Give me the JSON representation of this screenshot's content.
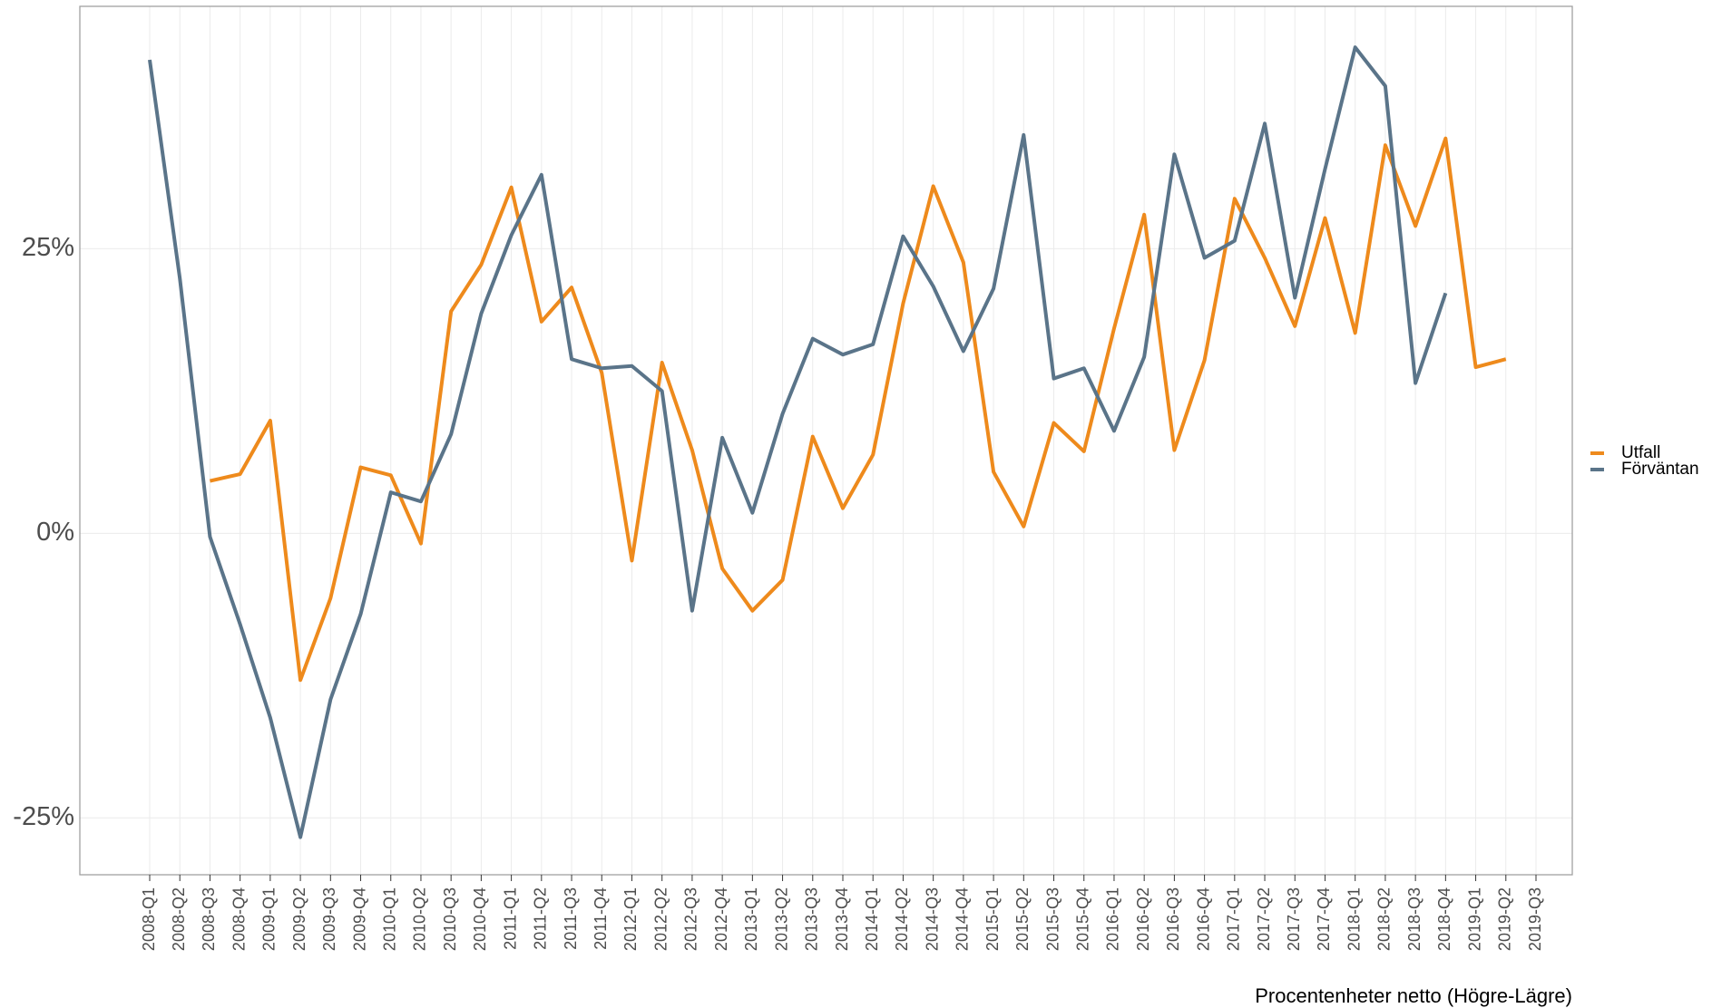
{
  "chart_data": {
    "type": "line",
    "x_label": "Procentenheter netto (Högre-Lägre)",
    "categories": [
      "2008-Q1",
      "2008-Q2",
      "2008-Q3",
      "2008-Q4",
      "2009-Q1",
      "2009-Q2",
      "2009-Q3",
      "2009-Q4",
      "2010-Q1",
      "2010-Q2",
      "2010-Q3",
      "2010-Q4",
      "2011-Q1",
      "2011-Q2",
      "2011-Q3",
      "2011-Q4",
      "2012-Q1",
      "2012-Q2",
      "2012-Q3",
      "2012-Q4",
      "2013-Q1",
      "2013-Q2",
      "2013-Q3",
      "2013-Q4",
      "2014-Q1",
      "2014-Q2",
      "2014-Q3",
      "2014-Q4",
      "2015-Q1",
      "2015-Q2",
      "2015-Q3",
      "2015-Q4",
      "2016-Q1",
      "2016-Q2",
      "2016-Q3",
      "2016-Q4",
      "2017-Q1",
      "2017-Q2",
      "2017-Q3",
      "2017-Q4",
      "2018-Q1",
      "2018-Q2",
      "2018-Q3",
      "2018-Q4",
      "2019-Q1",
      "2019-Q2",
      "2019-Q3"
    ],
    "series": [
      {
        "name": "Utfall",
        "color": "#ee8a1c",
        "values": [
          null,
          null,
          4.6,
          5.2,
          9.9,
          -12.9,
          -5.7,
          5.8,
          5.1,
          -0.9,
          19.5,
          23.6,
          30.4,
          18.6,
          21.6,
          14.1,
          -2.4,
          15.0,
          7.3,
          -3.1,
          -6.8,
          -4.1,
          8.5,
          2.2,
          6.9,
          20.2,
          30.5,
          23.8,
          5.4,
          0.6,
          9.7,
          7.2,
          18.0,
          28.0,
          7.3,
          15.2,
          29.4,
          24.2,
          18.2,
          27.7,
          17.6,
          34.1,
          27.0,
          34.7,
          14.6,
          15.3,
          null
        ]
      },
      {
        "name": "Förväntan",
        "color": "#5a7489",
        "values": [
          41.6,
          22.4,
          -0.3,
          -8.0,
          -16.2,
          -26.7,
          -14.6,
          -7.1,
          3.6,
          2.8,
          8.7,
          19.3,
          26.2,
          31.5,
          15.3,
          14.5,
          14.7,
          12.5,
          -6.8,
          8.4,
          1.8,
          10.5,
          17.1,
          15.7,
          16.6,
          26.1,
          21.7,
          16.0,
          21.5,
          35.0,
          13.6,
          14.5,
          9.0,
          15.5,
          33.3,
          24.2,
          25.7,
          36.0,
          20.7,
          32.0,
          42.7,
          39.3,
          13.2,
          21.1,
          null,
          null,
          null
        ]
      }
    ],
    "ylim": [
      -30.0,
      46.3
    ],
    "yticks": [
      {
        "value": -25,
        "label": "-25%"
      },
      {
        "value": 0,
        "label": "0%"
      },
      {
        "value": 25,
        "label": "25%"
      }
    ],
    "grid": true,
    "legend": "right"
  }
}
